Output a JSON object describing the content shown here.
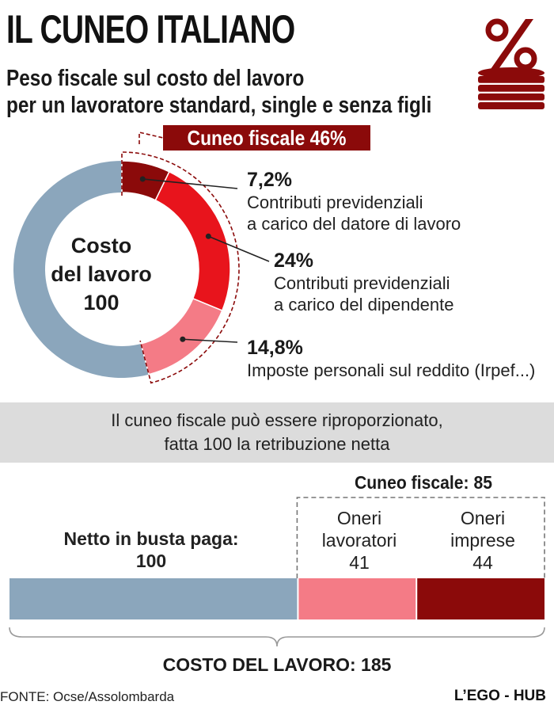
{
  "title": "IL CUNEO ITALIANO",
  "subtitle_line1": "Peso fiscale sul costo del lavoro",
  "subtitle_line2": "per un lavoratore standard, single e senza figli",
  "icon": "percent-coins-icon",
  "colors": {
    "dark_red": "#8b0a0a",
    "red": "#e8141c",
    "pink": "#f47b86",
    "gray_blue": "#8ba6bc",
    "band": "#dcdcdc"
  },
  "cuneo_badge": "Cuneo fiscale 46%",
  "donut_center": [
    "Costo",
    "del lavoro",
    "100"
  ],
  "items": [
    {
      "pct": "7,2%",
      "desc1": "Contributi previdenziali",
      "desc2": "a carico del datore di lavoro"
    },
    {
      "pct": "24%",
      "desc1": "Contributi previdenziali",
      "desc2": "a carico del dipendente"
    },
    {
      "pct": "14,8%",
      "desc1": "Imposte personali sul reddito (Irpef...)",
      "desc2": ""
    }
  ],
  "band_line1": "Il cuneo fiscale può essere riproporzionato,",
  "band_line2": "fatta 100 la retribuzione netta",
  "bar_section": {
    "cuneo_label": "Cuneo fiscale: 85",
    "netto_label1": "Netto in busta paga:",
    "netto_value": "100",
    "lav_label1": "Oneri",
    "lav_label2": "lavoratori",
    "lav_value": "41",
    "imp_label1": "Oneri",
    "imp_label2": "imprese",
    "imp_value": "44",
    "total_label": "COSTO DEL LAVORO: 185"
  },
  "footer_source": "FONTE: Ocse/Assolombarda",
  "footer_brand": "L’EGO - HUB",
  "chart_data": [
    {
      "type": "pie",
      "title": "Costo del lavoro 100",
      "categories": [
        "Netto",
        "Contributi previdenziali a carico del datore di lavoro",
        "Contributi previdenziali a carico del dipendente",
        "Imposte personali sul reddito (Irpef...)"
      ],
      "values": [
        54,
        7.2,
        24,
        14.8
      ]
    },
    {
      "type": "bar",
      "title": "COSTO DEL LAVORO: 185",
      "categories": [
        "Netto in busta paga",
        "Oneri lavoratori",
        "Oneri imprese"
      ],
      "values": [
        100,
        41,
        44
      ]
    }
  ]
}
